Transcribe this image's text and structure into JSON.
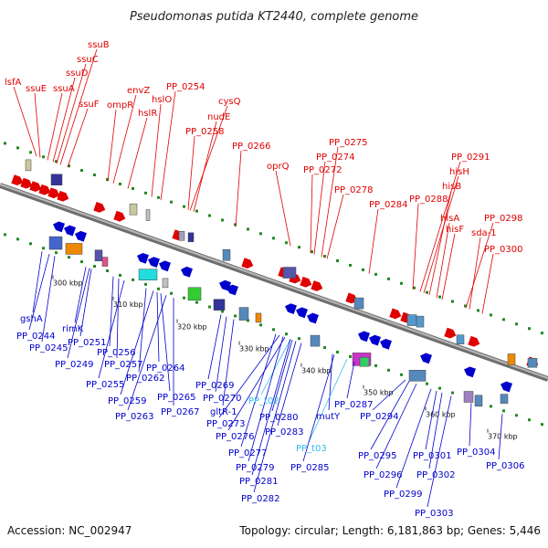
{
  "title": "Pseudomonas putida KT2440, complete genome",
  "footer": {
    "accession": "Accession: NC_002947",
    "summary": "Topology: circular; Length: 6,181,863 bp; Genes: 5,446"
  },
  "colors": {
    "forward": "#e00000",
    "reverse": "#0000cc",
    "rna": "#33bbee",
    "backbone": "#8a8a8a",
    "ticks": "#228822"
  },
  "ticks": [
    "300 kbp",
    "310 kbp",
    "320 kbp",
    "330 kbp",
    "340 kbp",
    "350 kbp",
    "360 kbp",
    "370 kbp"
  ],
  "top_labels": [
    {
      "text": "lsfA",
      "color": "#e00000"
    },
    {
      "text": "ssuE",
      "color": "#e00000"
    },
    {
      "text": "ssuA",
      "color": "#e00000"
    },
    {
      "text": "ssuD",
      "color": "#e00000"
    },
    {
      "text": "ssuC",
      "color": "#e00000"
    },
    {
      "text": "ssuB",
      "color": "#e00000"
    },
    {
      "text": "ssuF",
      "color": "#e00000"
    },
    {
      "text": "ompR",
      "color": "#e00000"
    },
    {
      "text": "envZ",
      "color": "#e00000"
    },
    {
      "text": "hslR",
      "color": "#e00000"
    },
    {
      "text": "hslO",
      "color": "#e00000"
    },
    {
      "text": "PP_0254",
      "color": "#e00000"
    },
    {
      "text": "cysQ",
      "color": "#e00000"
    },
    {
      "text": "nudE",
      "color": "#e00000"
    },
    {
      "text": "PP_0258",
      "color": "#e00000"
    },
    {
      "text": "PP_0266",
      "color": "#e00000"
    },
    {
      "text": "oprQ",
      "color": "#e00000"
    },
    {
      "text": "PP_0272",
      "color": "#e00000"
    },
    {
      "text": "PP_0274",
      "color": "#e00000"
    },
    {
      "text": "PP_0275",
      "color": "#e00000"
    },
    {
      "text": "PP_0278",
      "color": "#e00000"
    },
    {
      "text": "PP_0284",
      "color": "#e00000"
    },
    {
      "text": "PP_0288",
      "color": "#e00000"
    },
    {
      "text": "PP_0291",
      "color": "#e00000"
    },
    {
      "text": "hisH",
      "color": "#e00000"
    },
    {
      "text": "hisB",
      "color": "#e00000"
    },
    {
      "text": "hisA",
      "color": "#e00000"
    },
    {
      "text": "hisF",
      "color": "#e00000"
    },
    {
      "text": "PP_0298",
      "color": "#e00000"
    },
    {
      "text": "sda-1",
      "color": "#e00000"
    },
    {
      "text": "PP_0300",
      "color": "#e00000"
    }
  ],
  "bottom_labels": [
    {
      "text": "gshA",
      "color": "#0000cc"
    },
    {
      "text": "PP_0244",
      "color": "#0000cc"
    },
    {
      "text": "PP_0245",
      "color": "#0000cc"
    },
    {
      "text": "rimK",
      "color": "#0000cc"
    },
    {
      "text": "PP_0251",
      "color": "#0000cc"
    },
    {
      "text": "PP_0249",
      "color": "#0000cc"
    },
    {
      "text": "PP_0256",
      "color": "#0000cc"
    },
    {
      "text": "PP_0257",
      "color": "#0000cc"
    },
    {
      "text": "PP_0255",
      "color": "#0000cc"
    },
    {
      "text": "PP_0262",
      "color": "#0000cc"
    },
    {
      "text": "PP_0264",
      "color": "#0000cc"
    },
    {
      "text": "PP_0259",
      "color": "#0000cc"
    },
    {
      "text": "PP_0265",
      "color": "#0000cc"
    },
    {
      "text": "PP_0263",
      "color": "#0000cc"
    },
    {
      "text": "PP_0267",
      "color": "#0000cc"
    },
    {
      "text": "PP_0269",
      "color": "#0000cc"
    },
    {
      "text": "PP_0270",
      "color": "#0000cc"
    },
    {
      "text": "gltR-1",
      "color": "#0000cc"
    },
    {
      "text": "PP_t02",
      "color": "#33bbee"
    },
    {
      "text": "PP_0273",
      "color": "#0000cc"
    },
    {
      "text": "PP_0276",
      "color": "#0000cc"
    },
    {
      "text": "PP_0280",
      "color": "#0000cc"
    },
    {
      "text": "PP_0283",
      "color": "#0000cc"
    },
    {
      "text": "PP_0277",
      "color": "#0000cc"
    },
    {
      "text": "PP_0279",
      "color": "#0000cc"
    },
    {
      "text": "PP_0281",
      "color": "#0000cc"
    },
    {
      "text": "PP_0282",
      "color": "#0000cc"
    },
    {
      "text": "mutY",
      "color": "#0000cc"
    },
    {
      "text": "PP_0287",
      "color": "#0000cc"
    },
    {
      "text": "PP_t03",
      "color": "#33bbee"
    },
    {
      "text": "PP_0285",
      "color": "#0000cc"
    },
    {
      "text": "PP_0294",
      "color": "#0000cc"
    },
    {
      "text": "PP_0295",
      "color": "#0000cc"
    },
    {
      "text": "PP_0296",
      "color": "#0000cc"
    },
    {
      "text": "PP_0299",
      "color": "#0000cc"
    },
    {
      "text": "PP_0301",
      "color": "#0000cc"
    },
    {
      "text": "PP_0302",
      "color": "#0000cc"
    },
    {
      "text": "PP_0303",
      "color": "#0000cc"
    },
    {
      "text": "PP_0304",
      "color": "#0000cc"
    },
    {
      "text": "PP_0306",
      "color": "#0000cc"
    }
  ]
}
